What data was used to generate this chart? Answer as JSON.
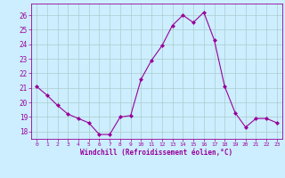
{
  "x": [
    0,
    1,
    2,
    3,
    4,
    5,
    6,
    7,
    8,
    9,
    10,
    11,
    12,
    13,
    14,
    15,
    16,
    17,
    18,
    19,
    20,
    21,
    22,
    23
  ],
  "y": [
    21.1,
    20.5,
    19.8,
    19.2,
    18.9,
    18.6,
    17.8,
    17.8,
    19.0,
    19.1,
    21.6,
    22.9,
    23.9,
    25.3,
    26.0,
    25.5,
    26.2,
    24.3,
    21.1,
    19.3,
    18.3,
    18.9,
    18.9,
    18.6
  ],
  "line_color": "#990099",
  "marker": "D",
  "marker_size": 2.0,
  "bg_color": "#cceeff",
  "grid_color": "#aacccc",
  "xlabel": "Windchill (Refroidissement éolien,°C)",
  "xlabel_color": "#990099",
  "tick_color": "#990099",
  "ylabel_ticks": [
    18,
    19,
    20,
    21,
    22,
    23,
    24,
    25,
    26
  ],
  "ylim": [
    17.5,
    26.8
  ],
  "xlim": [
    -0.5,
    23.5
  ],
  "ytick_fontsize": 5.5,
  "xtick_fontsize": 4.5,
  "xlabel_fontsize": 5.5
}
